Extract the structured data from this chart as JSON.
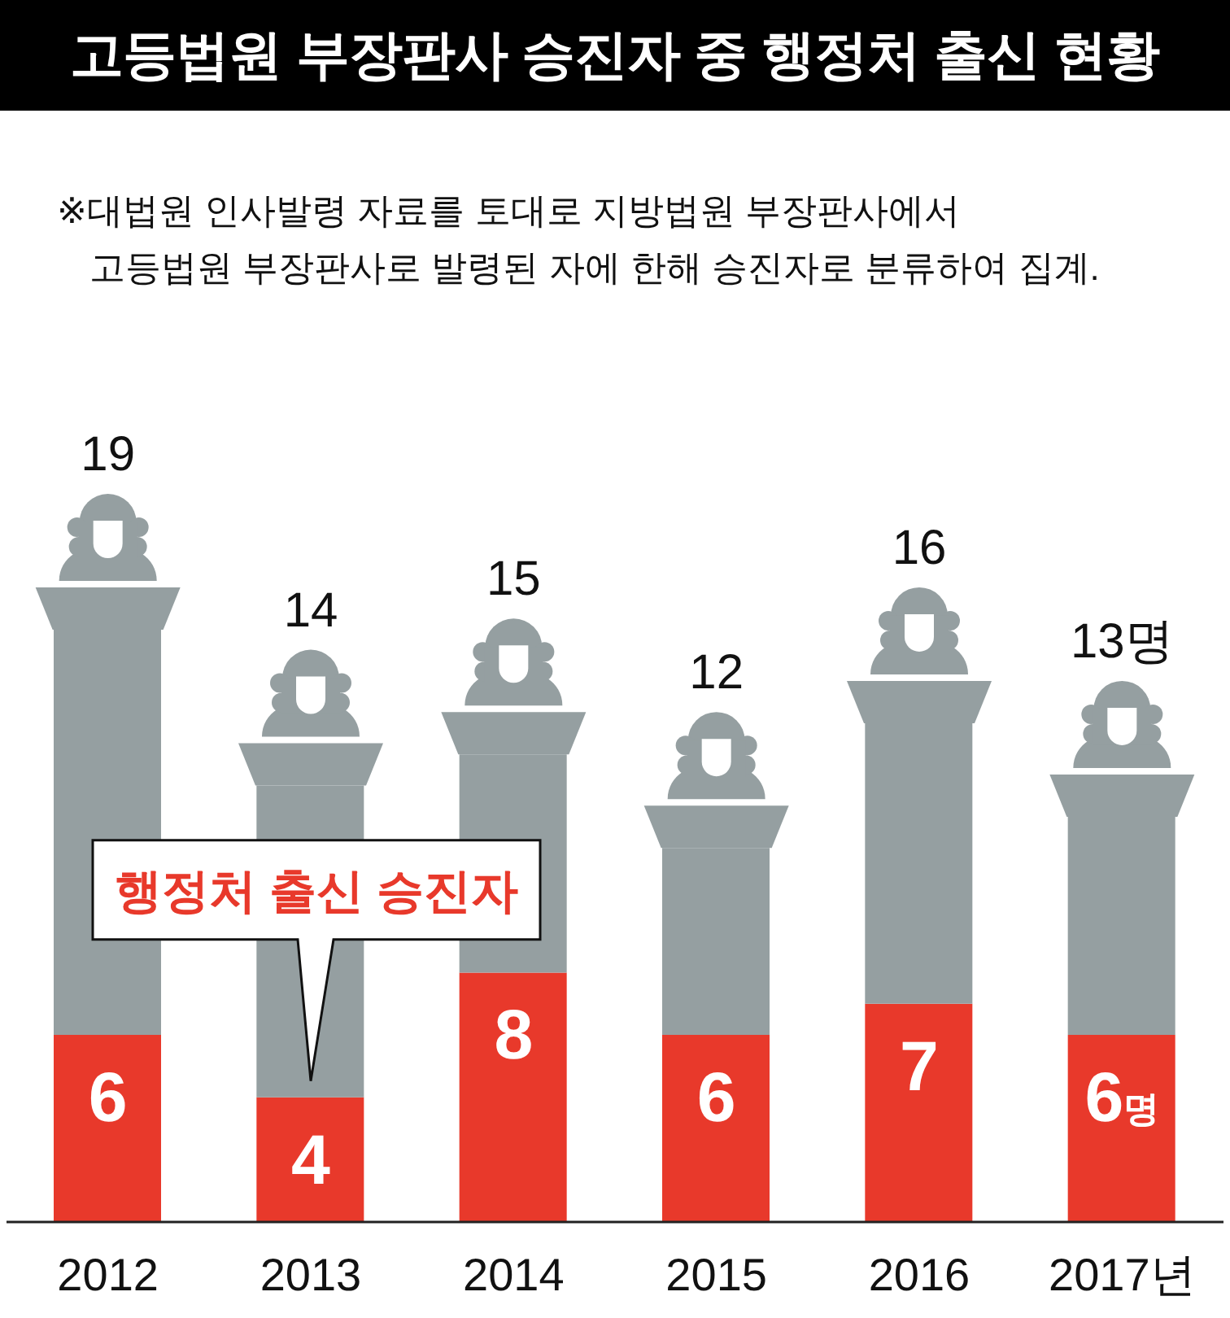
{
  "chart_data": {
    "type": "bar",
    "title": "고등법원 부장판사 승진자 중 행정처 출신 현황",
    "annotations": [
      "※대법원 인사발령 자료를 토대로 지방법원 부장판사에서\n고등법원 부장판사로 발령된 자에 한해 승진자로 분류하여 집계."
    ],
    "categories": [
      "2012",
      "2013",
      "2014",
      "2015",
      "2016",
      "2017년"
    ],
    "stacked": true,
    "series": [
      {
        "name": "행정처 출신 승진자",
        "color": "#e8392b",
        "values": [
          6,
          4,
          8,
          6,
          7,
          6
        ],
        "value_labels": [
          "6",
          "4",
          "8",
          "6",
          "7",
          "6명"
        ]
      },
      {
        "color": "#959fa1",
        "values": [
          13,
          10,
          7,
          6,
          9,
          7
        ]
      }
    ],
    "totals": [
      "19",
      "14",
      "15",
      "12",
      "16",
      "13명"
    ]
  }
}
